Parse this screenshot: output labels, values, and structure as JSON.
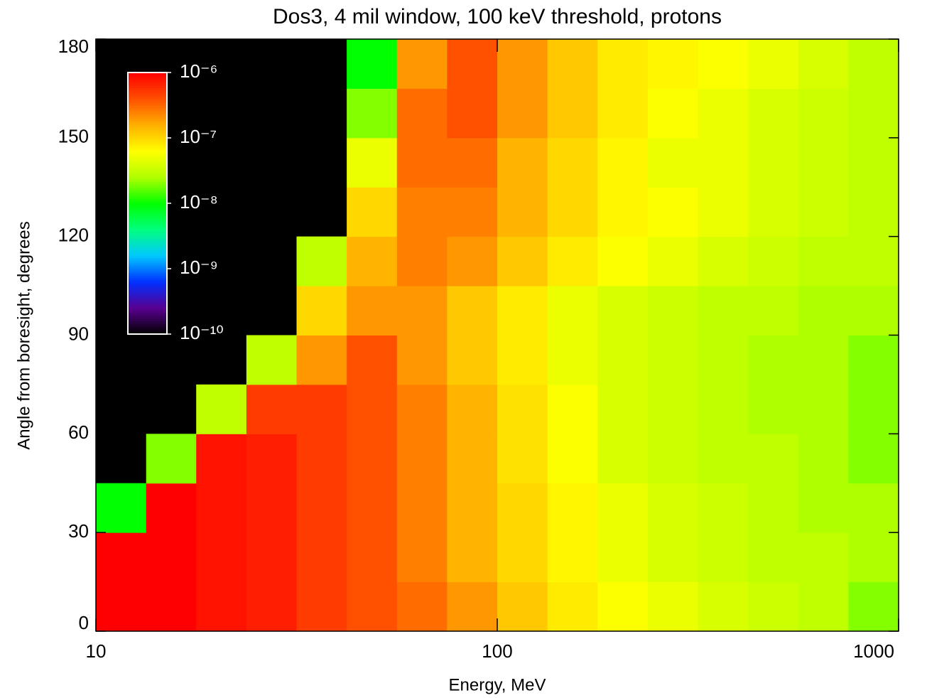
{
  "chart_data": {
    "type": "heatmap",
    "title": "Dos3, 4 mil window, 100 keV threshold, protons",
    "xlabel": "Energy, MeV",
    "ylabel": "Angle from boresight, degrees",
    "xscale": "log",
    "xlim": [
      10,
      1000
    ],
    "xticks": [
      10,
      100,
      1000
    ],
    "ylim": [
      0,
      180
    ],
    "yticks": [
      0,
      30,
      60,
      90,
      120,
      150,
      180
    ],
    "xbins": [
      10,
      13.34,
      17.78,
      23.71,
      31.62,
      42.17,
      56.23,
      74.99,
      100,
      133.4,
      177.8,
      237.1,
      316.2,
      421.7,
      562.3,
      749.9,
      1000
    ],
    "ybins": [
      0,
      15,
      30,
      45,
      60,
      75,
      90,
      105,
      120,
      135,
      150,
      165,
      180
    ],
    "values": [
      [
        1e-06,
        1e-06,
        8e-07,
        7e-07,
        5e-07,
        4e-07,
        3e-07,
        2e-07,
        1.2e-07,
        8e-08,
        6e-08,
        5e-08,
        4e-08,
        3.5e-08,
        3e-08,
        2e-08
      ],
      [
        1e-06,
        1e-06,
        8e-07,
        7e-07,
        5e-07,
        4e-07,
        2.5e-07,
        1.5e-07,
        1e-07,
        7e-08,
        5e-08,
        4e-08,
        3.5e-08,
        3e-08,
        3e-08,
        2.5e-08
      ],
      [
        1e-08,
        1e-06,
        8e-07,
        7e-07,
        5e-07,
        4e-07,
        2.5e-07,
        1.5e-07,
        1e-07,
        7e-08,
        5e-08,
        4e-08,
        3.5e-08,
        3e-08,
        2.5e-08,
        2.5e-08
      ],
      [
        null,
        2e-08,
        8e-07,
        7e-07,
        5e-07,
        4e-07,
        2.5e-07,
        1.5e-07,
        9e-08,
        6e-08,
        4e-08,
        3.5e-08,
        3e-08,
        3e-08,
        2.5e-08,
        2e-08
      ],
      [
        null,
        null,
        3e-08,
        5e-07,
        5e-07,
        4e-07,
        2.5e-07,
        1.5e-07,
        9e-08,
        6e-08,
        4e-08,
        3.5e-08,
        3e-08,
        2.5e-08,
        2.5e-08,
        2e-08
      ],
      [
        null,
        null,
        null,
        3e-08,
        2e-07,
        4e-07,
        2e-07,
        1.2e-07,
        8e-08,
        5e-08,
        4e-08,
        3.5e-08,
        3e-08,
        2.5e-08,
        2.5e-08,
        2e-08
      ],
      [
        null,
        null,
        null,
        null,
        1e-07,
        2e-07,
        2e-07,
        1.2e-07,
        8e-08,
        5e-08,
        4e-08,
        3.5e-08,
        3e-08,
        3e-08,
        2.5e-08,
        2.5e-08
      ],
      [
        null,
        null,
        null,
        null,
        3e-08,
        1.5e-07,
        2.5e-07,
        2e-07,
        1.2e-07,
        8e-08,
        6e-08,
        5e-08,
        4e-08,
        3.5e-08,
        3e-08,
        3e-08
      ],
      [
        null,
        null,
        null,
        null,
        null,
        1e-07,
        2.5e-07,
        2.5e-07,
        1.5e-07,
        1e-07,
        7e-08,
        6e-08,
        5e-08,
        4e-08,
        3.5e-08,
        3e-08
      ],
      [
        null,
        null,
        null,
        null,
        null,
        5e-08,
        3e-07,
        3e-07,
        1.5e-07,
        1e-07,
        7e-08,
        5e-08,
        5e-08,
        4e-08,
        3.5e-08,
        3e-08
      ],
      [
        null,
        null,
        null,
        null,
        null,
        2e-08,
        3e-07,
        4e-07,
        2e-07,
        1.2e-07,
        8e-08,
        6e-08,
        5e-08,
        4e-08,
        3.5e-08,
        3e-08
      ],
      [
        null,
        null,
        null,
        null,
        null,
        1e-08,
        2e-07,
        4e-07,
        2e-07,
        1.2e-07,
        8e-08,
        7e-08,
        6e-08,
        5e-08,
        4e-08,
        3e-08
      ]
    ],
    "background": "#000000",
    "colorbar": {
      "scale": "log",
      "lim": [
        1e-10,
        1e-06
      ],
      "ticks": [
        {
          "value": 1e-06,
          "label": "10⁻⁶"
        },
        {
          "value": 1e-07,
          "label": "10⁻⁷"
        },
        {
          "value": 1e-08,
          "label": "10⁻⁸"
        },
        {
          "value": 1e-09,
          "label": "10⁻⁹"
        },
        {
          "value": 1e-10,
          "label": "10⁻¹⁰"
        }
      ],
      "colormap": [
        "#000000",
        "#5a0090",
        "#0030ff",
        "#00c8ff",
        "#00ff80",
        "#00ff00",
        "#b0ff00",
        "#ffff00",
        "#ffb000",
        "#ff5000",
        "#ff0000"
      ]
    }
  }
}
